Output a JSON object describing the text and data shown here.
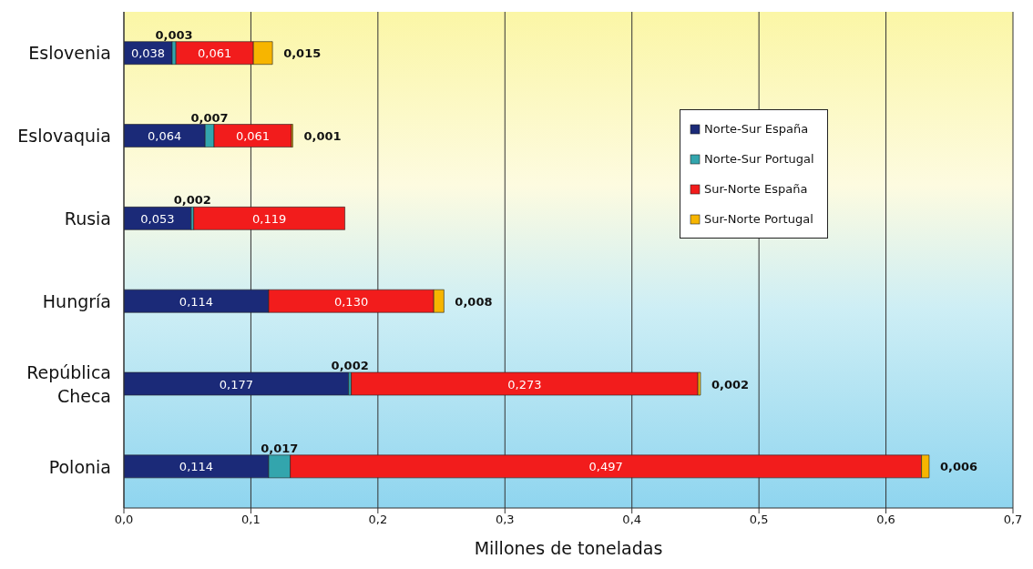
{
  "chart_data": {
    "type": "bar",
    "orientation": "horizontal",
    "stacked": true,
    "xlabel": "Millones de toneladas",
    "categories": [
      "Eslovenia",
      "Eslovaquia",
      "Rusia",
      "Hungría",
      "República Checa",
      "Polonia"
    ],
    "series": [
      {
        "name": "Norte-Sur España",
        "color": "#1b2a78",
        "values": [
          0.038,
          0.064,
          0.053,
          0.114,
          0.177,
          0.114
        ],
        "value_labels": [
          "0,038",
          "0,064",
          "0,053",
          "0,114",
          "0,177",
          "0,114"
        ]
      },
      {
        "name": "Norte-Sur Portugal",
        "color": "#33a5ad",
        "values": [
          0.003,
          0.007,
          0.002,
          null,
          0.002,
          0.017
        ],
        "value_labels": [
          "0,003",
          "0,007",
          "0,002",
          null,
          "0,002",
          "0,017"
        ]
      },
      {
        "name": "Sur-Norte España",
        "color": "#f21c1c",
        "values": [
          0.061,
          0.061,
          0.119,
          0.13,
          0.273,
          0.497
        ],
        "value_labels": [
          "0,061",
          "0,061",
          "0,119",
          "0,130",
          "0,273",
          "0,497"
        ]
      },
      {
        "name": "Sur-Norte Portugal",
        "color": "#f7b500",
        "values": [
          0.015,
          0.001,
          null,
          0.008,
          0.002,
          0.006
        ],
        "value_labels": [
          "0,015",
          "0,001",
          null,
          "0,008",
          "0,002",
          "0,006"
        ]
      }
    ],
    "xlim": [
      0,
      0.7
    ],
    "xticks": [
      {
        "value": 0,
        "label": "0,0"
      },
      {
        "value": 0.1,
        "label": "0,1"
      },
      {
        "value": 0.2,
        "label": "0,2"
      },
      {
        "value": 0.3,
        "label": "0,3"
      },
      {
        "value": 0.4,
        "label": "0,4"
      },
      {
        "value": 0.5,
        "label": "0,5"
      },
      {
        "value": 0.6,
        "label": "0,6"
      },
      {
        "value": 0.7,
        "label": "0,7"
      }
    ],
    "grid": "x",
    "legend": "top right"
  }
}
